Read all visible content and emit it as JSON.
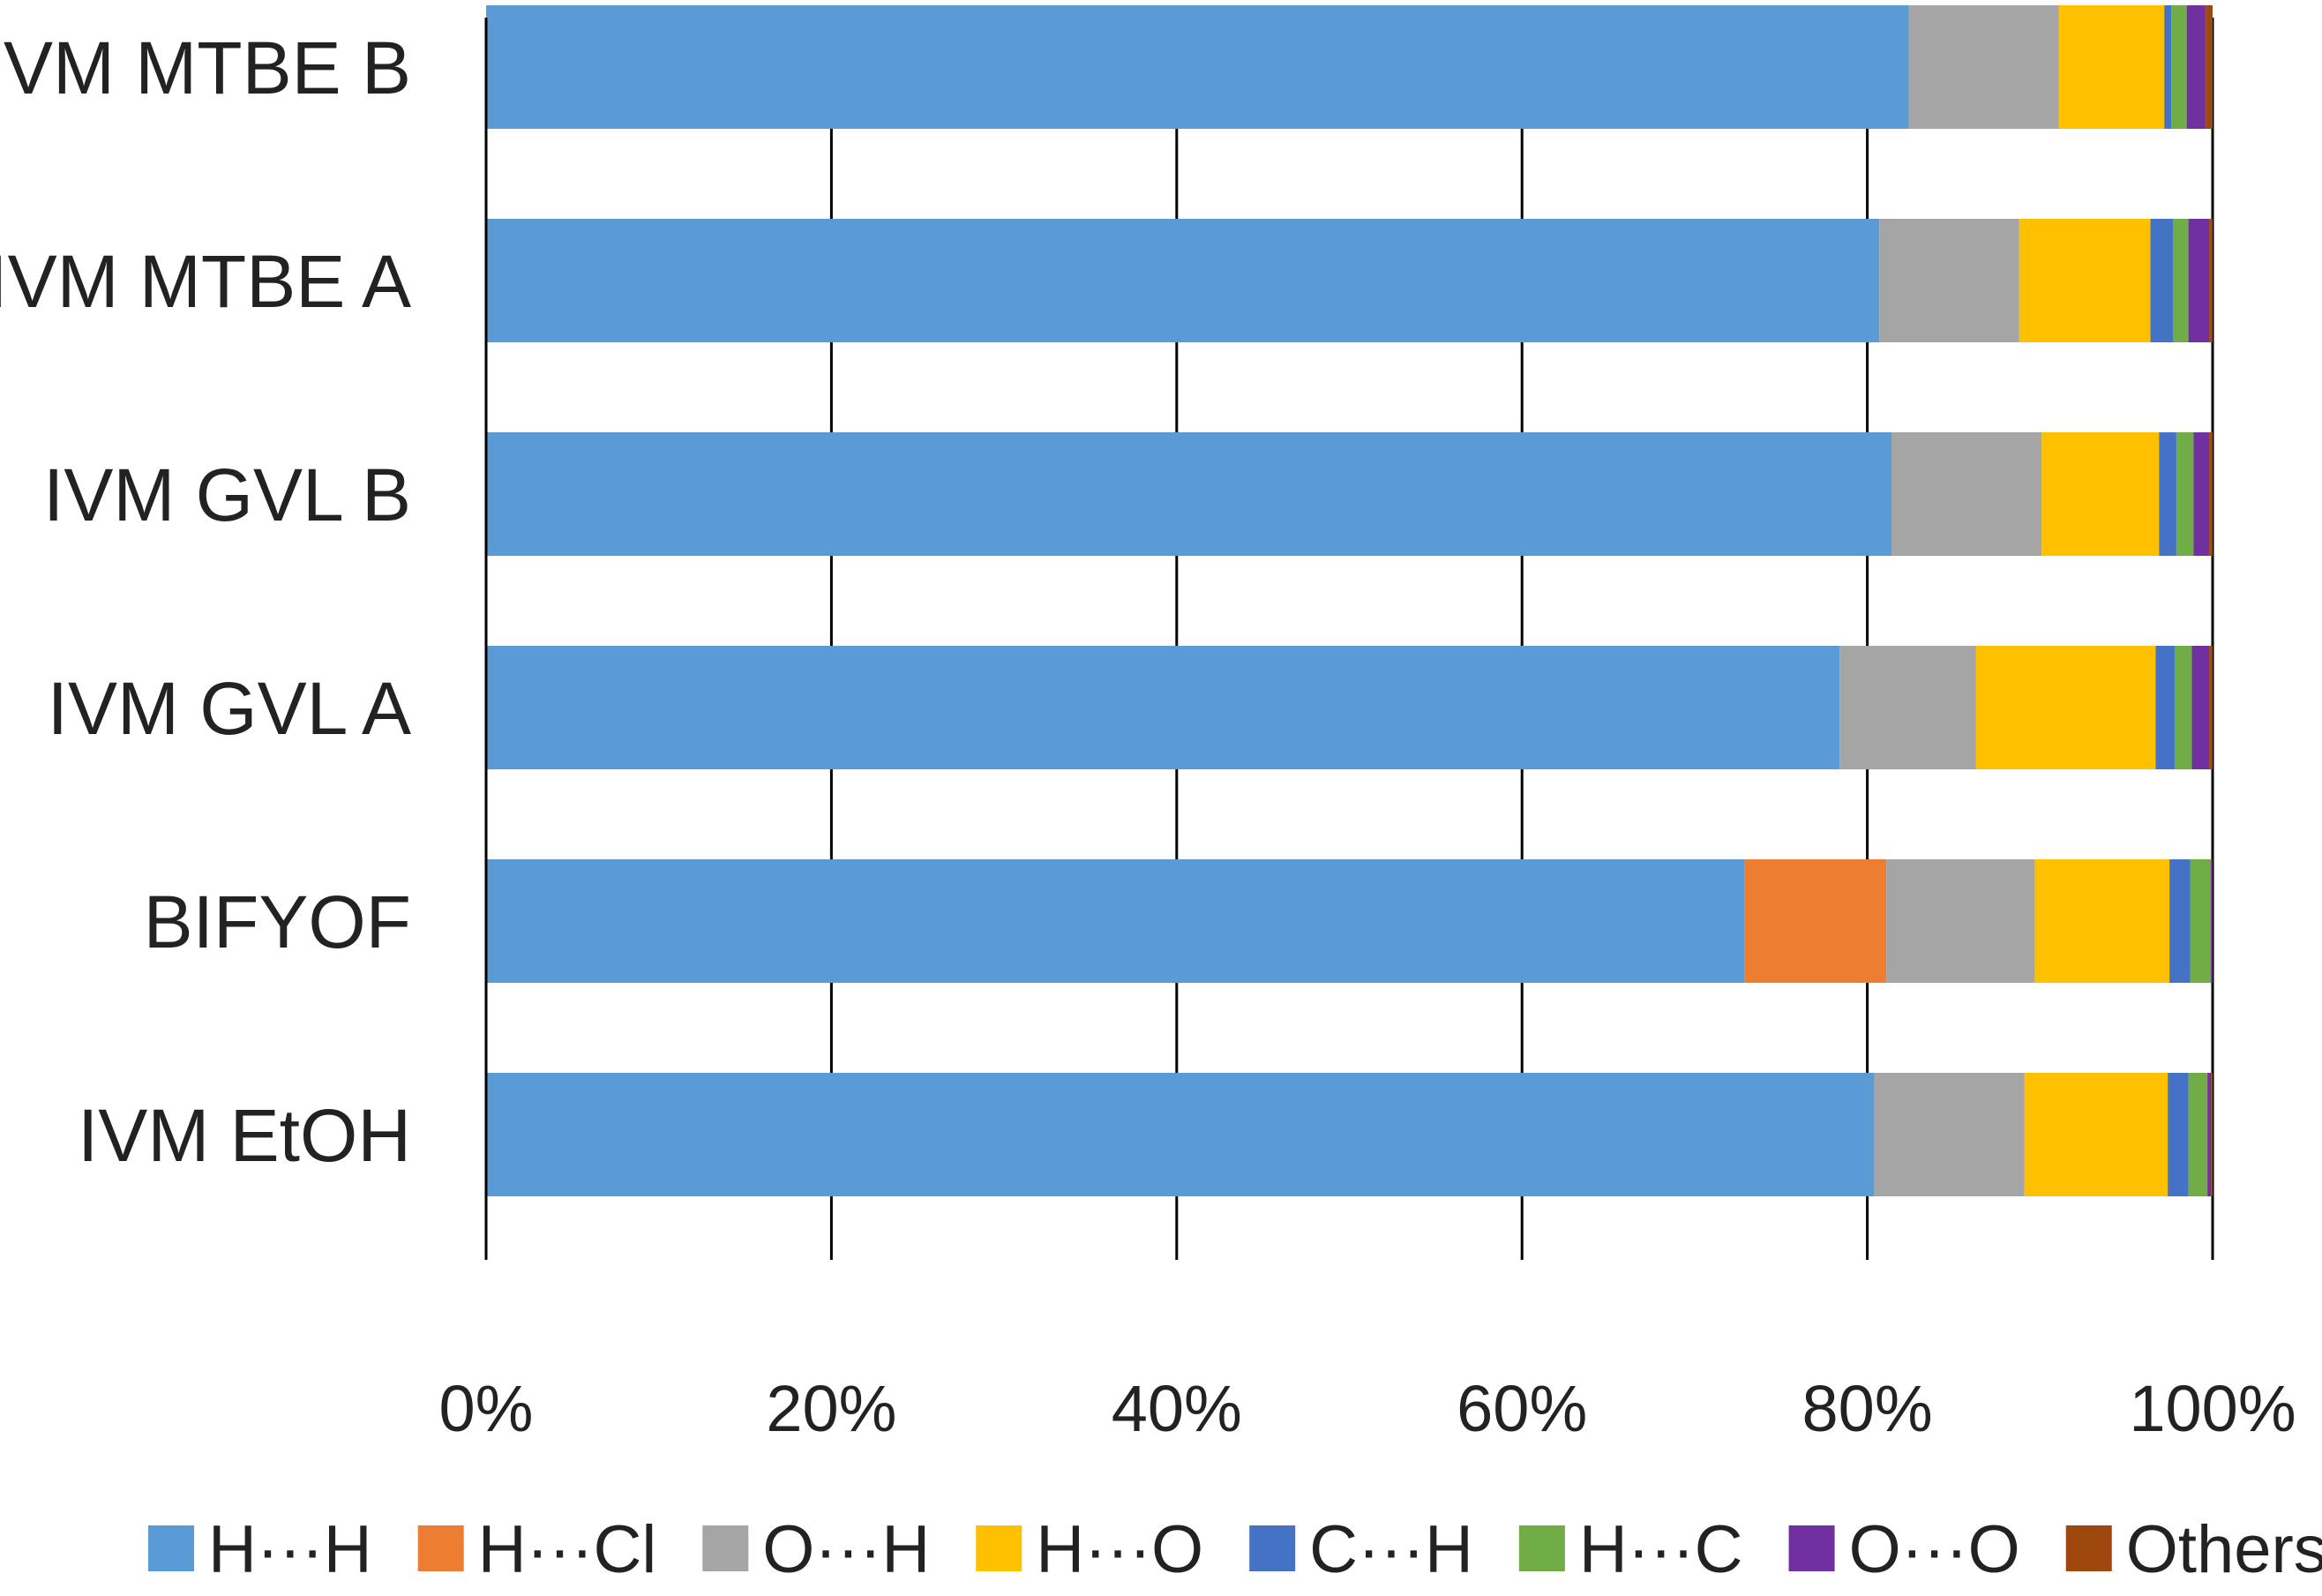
{
  "chart_data": {
    "type": "bar",
    "orientation": "horizontal",
    "stacking": "percent",
    "title": "",
    "xlabel": "",
    "ylabel": "",
    "xlim": [
      0,
      100
    ],
    "grid": true,
    "legend_position": "bottom",
    "categories": [
      "IVM MTBE B",
      "IVM MTBE A",
      "IVM GVL B",
      "IVM GVL A",
      "BIFYOF",
      "IVM EtOH"
    ],
    "x_ticks": [
      "0%",
      "20%",
      "40%",
      "60%",
      "80%",
      "100%"
    ],
    "series": [
      {
        "name": "H···H",
        "color": "#5B9BD5",
        "values": [
          82.4,
          80.7,
          81.4,
          78.4,
          72.9,
          80.4
        ]
      },
      {
        "name": "H···Cl",
        "color": "#ED7D31",
        "values": [
          0,
          0,
          0,
          0,
          8.2,
          0
        ]
      },
      {
        "name": "O···H",
        "color": "#A5A5A5",
        "values": [
          8.7,
          8.1,
          8.7,
          7.9,
          8.6,
          8.7
        ]
      },
      {
        "name": "H···O",
        "color": "#FFC000",
        "values": [
          6.1,
          7.6,
          6.8,
          10.4,
          7.8,
          8.3
        ]
      },
      {
        "name": "C···H",
        "color": "#4472C4",
        "values": [
          0.4,
          1.3,
          1.0,
          1.1,
          1.2,
          1.2
        ]
      },
      {
        "name": "H···C",
        "color": "#70AD47",
        "values": [
          0.9,
          0.9,
          1.0,
          1.0,
          1.2,
          1.1
        ]
      },
      {
        "name": "O···O",
        "color": "#7030A0",
        "values": [
          1.1,
          1.2,
          0.9,
          1.0,
          0.1,
          0.2
        ]
      },
      {
        "name": "Others",
        "color": "#9E480E",
        "values": [
          0.4,
          0.2,
          0.2,
          0.2,
          0.0,
          0.1
        ]
      }
    ]
  }
}
